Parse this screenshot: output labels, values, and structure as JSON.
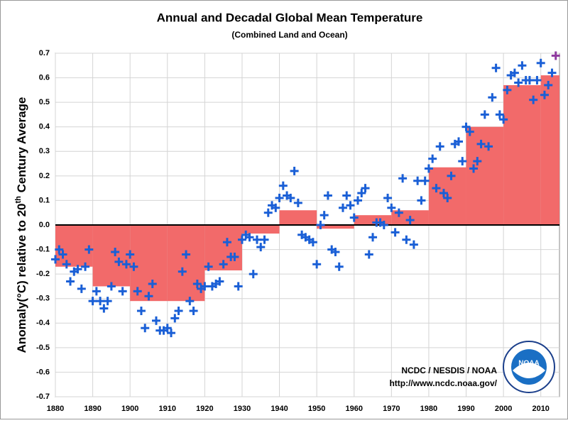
{
  "chart_data": {
    "type": "decadal-annual",
    "title": "Annual and Decadal Global Mean Temperature",
    "subtitle": "(Combined Land and Ocean)",
    "y_label": [
      "Anomaly(°C) relative to 20",
      "th",
      " Century Average"
    ],
    "annotations": [
      "NCDC / NESDIS / NOAA",
      "http://www.ncdc.noaa.gov/"
    ],
    "logo_text": "NOAA",
    "xlim": [
      1880,
      2015
    ],
    "ylim": [
      -0.7,
      0.7
    ],
    "xticks": [
      1880,
      1890,
      1900,
      1910,
      1920,
      1930,
      1940,
      1950,
      1960,
      1970,
      1980,
      1990,
      2000,
      2010
    ],
    "yticks": [
      -0.7,
      -0.6,
      -0.5,
      -0.4,
      -0.3,
      -0.2,
      -0.1,
      {
        "value": 0,
        "label": "0.0"
      },
      0.1,
      0.2,
      0.3,
      0.4,
      0.5,
      0.6,
      0.7
    ],
    "grid": true,
    "decadal": {
      "color": "#f26a6a",
      "bins": [
        1880,
        1890,
        1900,
        1910,
        1920,
        1930,
        1940,
        1950,
        1960,
        1970,
        1980,
        1990,
        2000,
        2010,
        2015
      ],
      "values": [
        -0.17,
        -0.25,
        -0.31,
        -0.31,
        -0.185,
        -0.035,
        0.06,
        -0.015,
        0.04,
        0.06,
        0.235,
        0.4,
        0.57,
        0.61
      ]
    },
    "annual": {
      "color": "#1a5fd6",
      "x": [
        1880,
        1881,
        1882,
        1883,
        1884,
        1885,
        1886,
        1887,
        1888,
        1889,
        1890,
        1891,
        1892,
        1893,
        1894,
        1895,
        1896,
        1897,
        1898,
        1899,
        1900,
        1901,
        1902,
        1903,
        1904,
        1905,
        1906,
        1907,
        1908,
        1909,
        1910,
        1911,
        1912,
        1913,
        1914,
        1915,
        1916,
        1917,
        1918,
        1919,
        1920,
        1921,
        1922,
        1923,
        1924,
        1925,
        1926,
        1927,
        1928,
        1929,
        1930,
        1931,
        1932,
        1933,
        1934,
        1935,
        1936,
        1937,
        1938,
        1939,
        1940,
        1941,
        1942,
        1943,
        1944,
        1945,
        1946,
        1947,
        1948,
        1949,
        1950,
        1951,
        1952,
        1953,
        1954,
        1955,
        1956,
        1957,
        1958,
        1959,
        1960,
        1961,
        1962,
        1963,
        1964,
        1965,
        1966,
        1967,
        1968,
        1969,
        1970,
        1971,
        1972,
        1973,
        1974,
        1975,
        1976,
        1977,
        1978,
        1979,
        1980,
        1981,
        1982,
        1983,
        1984,
        1985,
        1986,
        1987,
        1988,
        1989,
        1990,
        1991,
        1992,
        1993,
        1994,
        1995,
        1996,
        1997,
        1998,
        1999,
        2000,
        2001,
        2002,
        2003,
        2004,
        2005,
        2006,
        2007,
        2008,
        2009,
        2010,
        2011,
        2012,
        2013
      ],
      "values": [
        -0.14,
        -0.1,
        -0.12,
        -0.16,
        -0.23,
        -0.19,
        -0.18,
        -0.26,
        -0.17,
        -0.1,
        -0.31,
        -0.27,
        -0.31,
        -0.34,
        -0.31,
        -0.25,
        -0.11,
        -0.15,
        -0.27,
        -0.16,
        -0.12,
        -0.17,
        -0.27,
        -0.35,
        -0.42,
        -0.29,
        -0.24,
        -0.39,
        -0.43,
        -0.43,
        -0.42,
        -0.44,
        -0.38,
        -0.35,
        -0.19,
        -0.12,
        -0.31,
        -0.35,
        -0.24,
        -0.26,
        -0.25,
        -0.17,
        -0.25,
        -0.24,
        -0.23,
        -0.16,
        -0.07,
        -0.13,
        -0.13,
        -0.25,
        -0.06,
        -0.04,
        -0.05,
        -0.2,
        -0.06,
        -0.09,
        -0.06,
        0.05,
        0.08,
        0.07,
        0.11,
        0.16,
        0.12,
        0.11,
        0.22,
        0.09,
        -0.04,
        -0.05,
        -0.06,
        -0.07,
        -0.16,
        0.0,
        0.04,
        0.12,
        -0.1,
        -0.11,
        -0.17,
        0.07,
        0.12,
        0.08,
        0.03,
        0.1,
        0.13,
        0.15,
        -0.12,
        -0.05,
        0.01,
        0.01,
        0.0,
        0.11,
        0.07,
        -0.03,
        0.05,
        0.19,
        -0.06,
        0.02,
        -0.08,
        0.18,
        0.1,
        0.18,
        0.23,
        0.27,
        0.15,
        0.32,
        0.13,
        0.11,
        0.2,
        0.33,
        0.34,
        0.26,
        0.4,
        0.38,
        0.23,
        0.26,
        0.33,
        0.45,
        0.32,
        0.52,
        0.64,
        0.45,
        0.43,
        0.55,
        0.61,
        0.62,
        0.58,
        0.65,
        0.59,
        0.59,
        0.51,
        0.59,
        0.66,
        0.53,
        0.57,
        0.62
      ]
    },
    "latest": {
      "color": "#8e3a9e",
      "x": [
        2014
      ],
      "values": [
        0.69
      ]
    }
  }
}
